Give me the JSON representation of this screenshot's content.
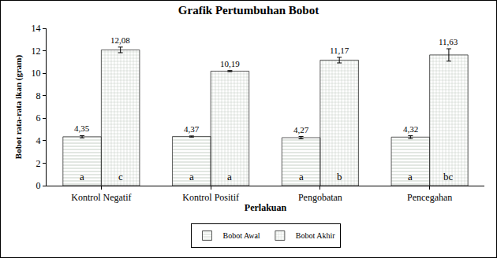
{
  "chart_data": {
    "type": "bar",
    "title": "Grafik Pertumbuhan Bobot",
    "x_label": "Perlakuan",
    "y_label": "Bobot rata-rata ikan (gram)",
    "categories": [
      "Kontrol Negatif",
      "Kontrol Positif",
      "Pengobatan",
      "Pencegahan"
    ],
    "series": [
      {
        "name": "Bobot Awal",
        "color": "#8cb43c",
        "values": [
          4.35,
          4.37,
          4.27,
          4.32
        ],
        "value_labels": [
          "4,35",
          "4,37",
          "4,27",
          "4,32"
        ],
        "error": [
          0.1,
          0.05,
          0.1,
          0.12
        ],
        "letters": [
          "a",
          "a",
          "a",
          "a"
        ]
      },
      {
        "name": "Bobot Akhir",
        "color": "#3dbdb4",
        "values": [
          12.08,
          10.19,
          11.17,
          11.63
        ],
        "value_labels": [
          "12,08",
          "10,19",
          "11,17",
          "11,63"
        ],
        "error": [
          0.25,
          0.05,
          0.25,
          0.55
        ],
        "letters": [
          "c",
          "a",
          "b",
          "bc"
        ]
      }
    ],
    "ylim": [
      0,
      14
    ],
    "yticks": [
      0,
      2,
      4,
      6,
      8,
      10,
      12,
      14
    ],
    "grid": false,
    "legend": "bottom",
    "data_labels": true
  }
}
